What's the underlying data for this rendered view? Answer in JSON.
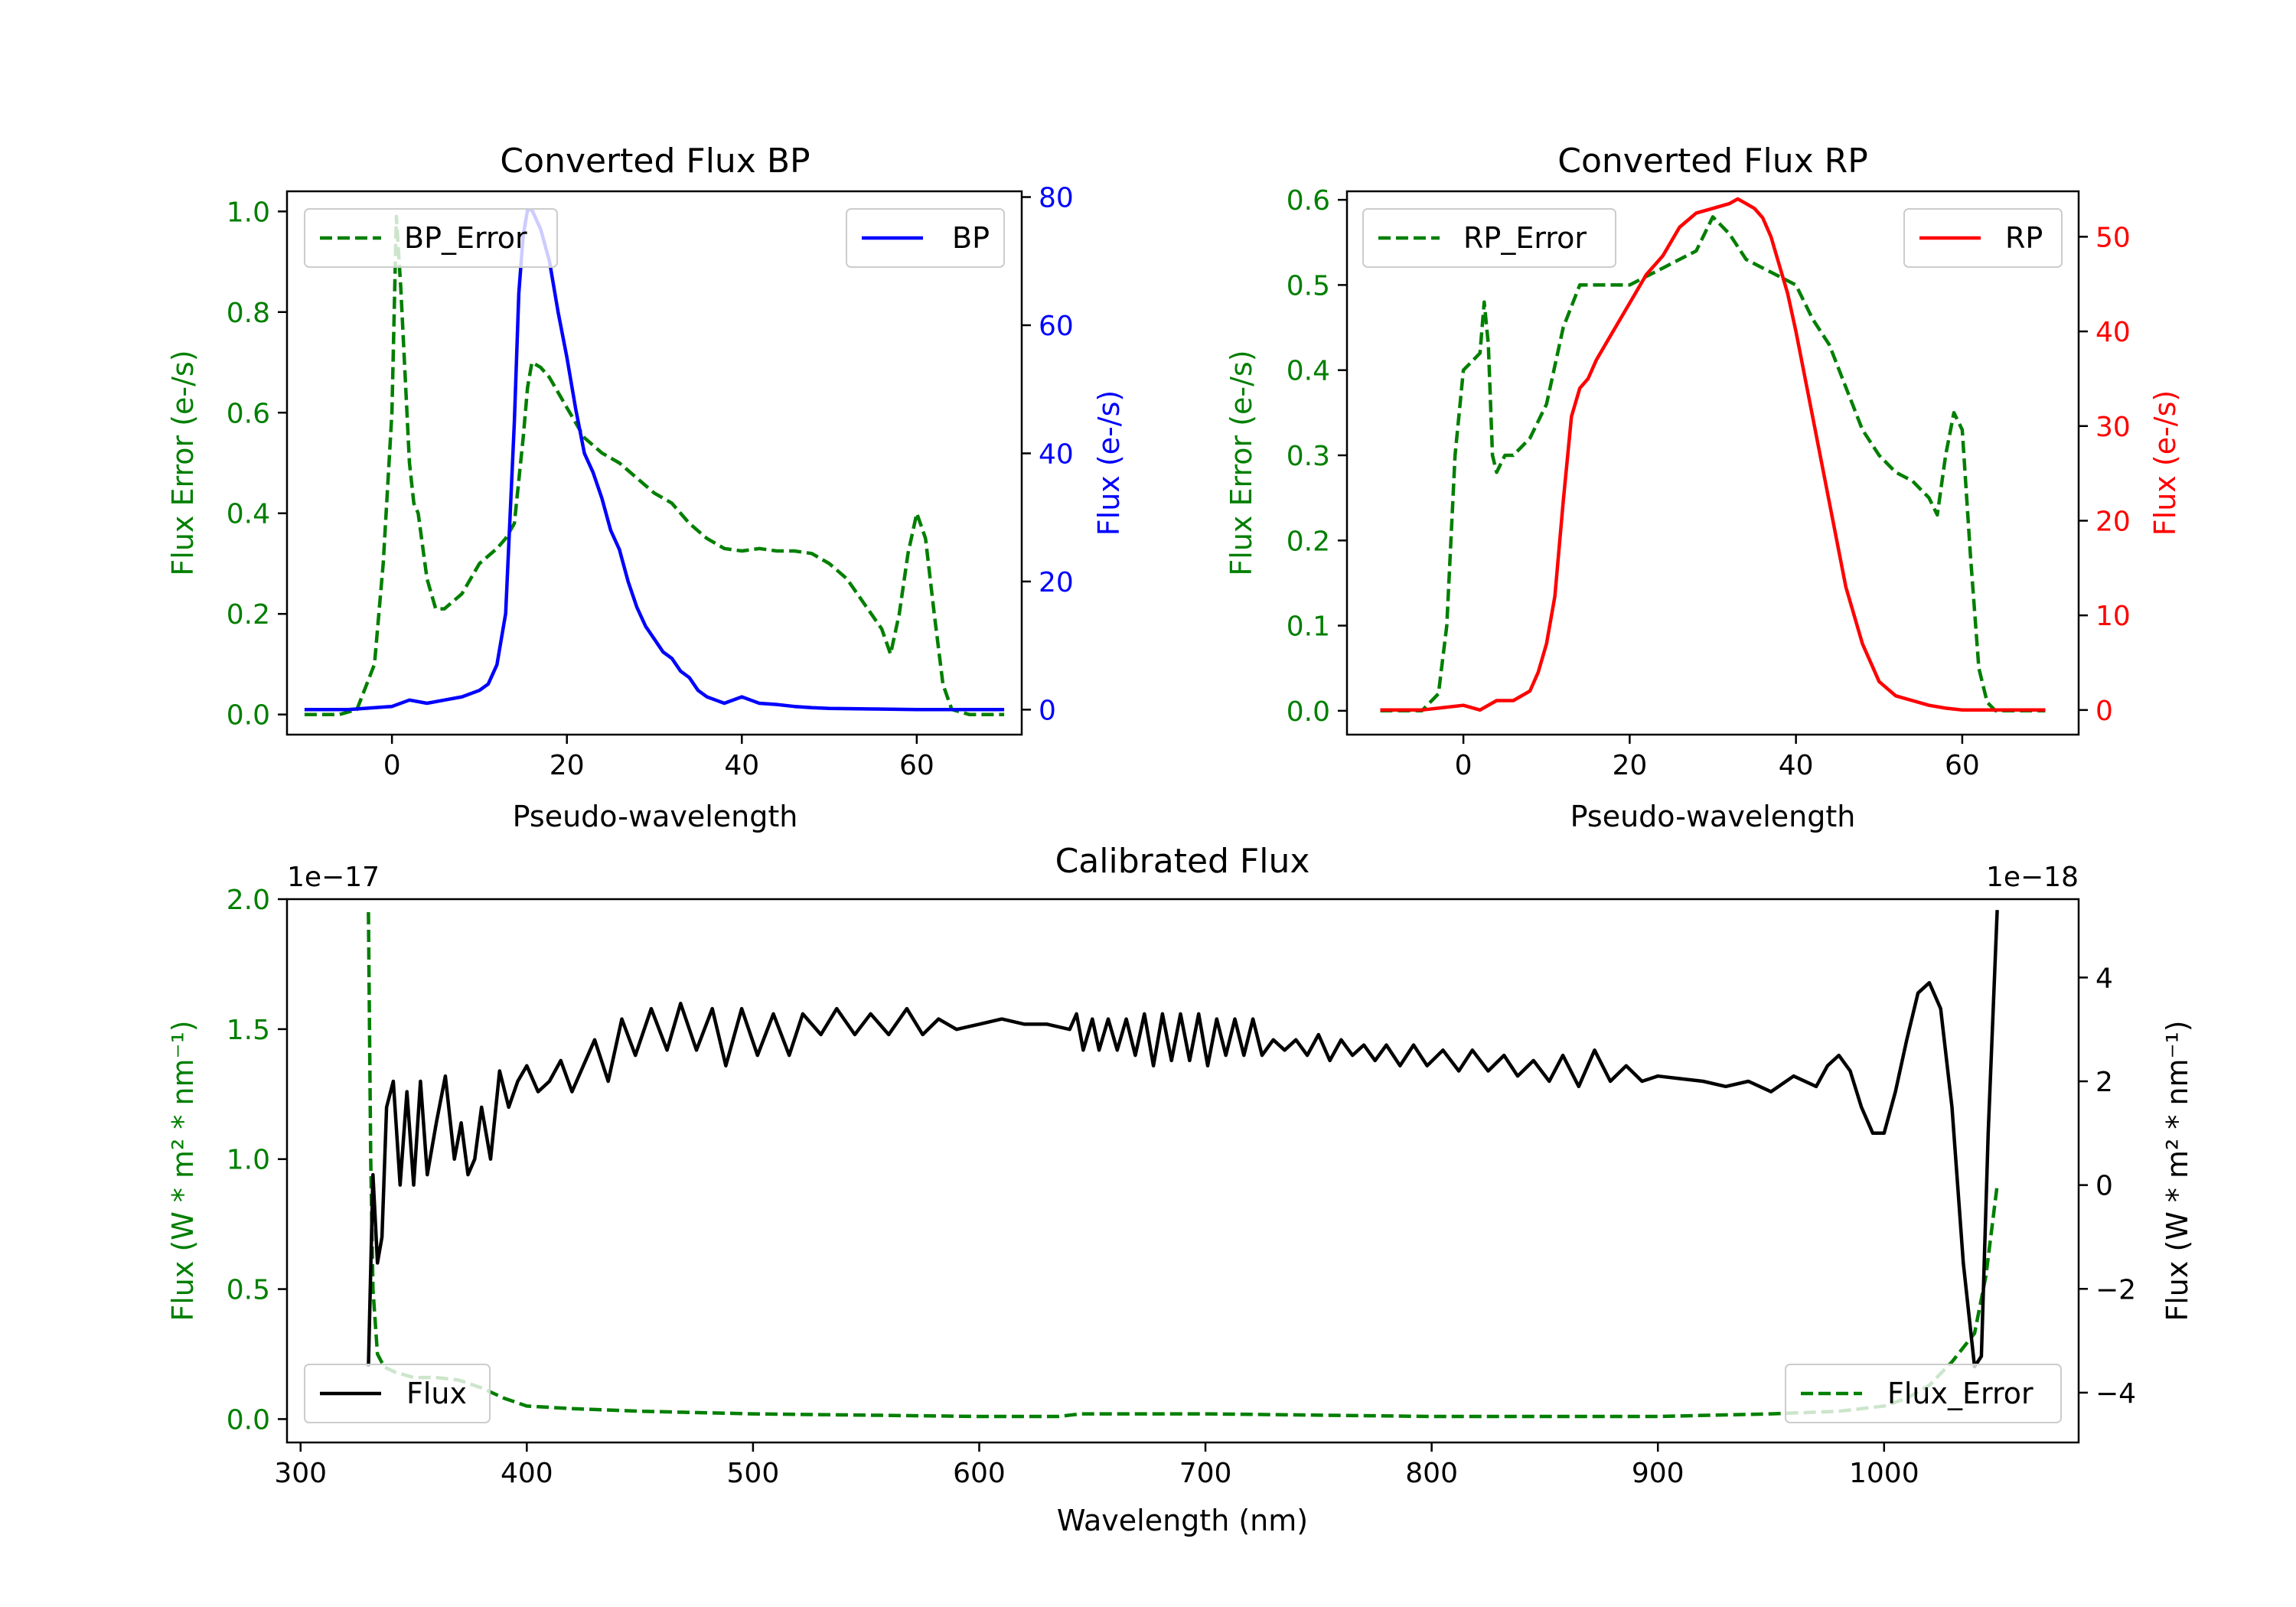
{
  "colors": {
    "green": "#007f00",
    "blue": "#0000ff",
    "red": "#ff0000",
    "black": "#000000"
  },
  "chart_data": [
    {
      "type": "line",
      "title": "Converted Flux BP",
      "xlabel": "Pseudo-wavelength",
      "ylabel_left": "Flux Error (e-/s)",
      "ylabel_right": "Flux (e-/s)",
      "xlim": [
        -12,
        72
      ],
      "ylim_left": [
        -0.04,
        1.04
      ],
      "ylim_right": [
        -3.9,
        80.9
      ],
      "xticks": [
        "0",
        "20",
        "40",
        "60"
      ],
      "yticks_left": [
        "0.0",
        "0.2",
        "0.4",
        "0.6",
        "0.8",
        "1.0"
      ],
      "yticks_right": [
        "0",
        "20",
        "40",
        "60",
        "80"
      ],
      "legend_left": {
        "label": "BP_Error",
        "position": "upper left"
      },
      "legend_right": {
        "label": "BP",
        "position": "upper right"
      },
      "series": [
        {
          "name": "BP_Error",
          "axis": "left",
          "style": "dashed",
          "color": "green",
          "x": [
            -10,
            -6,
            -4,
            -2,
            -1,
            0,
            0.5,
            1,
            2,
            2.5,
            3,
            4,
            5,
            6,
            8,
            10,
            12,
            13,
            14,
            15,
            15.5,
            16,
            17,
            18,
            20,
            22,
            24,
            26,
            28,
            30,
            32,
            34,
            36,
            38,
            40,
            42,
            44,
            46,
            48,
            50,
            52,
            54,
            56,
            57,
            58,
            59,
            60,
            61,
            62,
            63,
            64,
            66,
            70
          ],
          "values": [
            0.0,
            0.0,
            0.01,
            0.1,
            0.3,
            0.6,
            0.99,
            0.85,
            0.5,
            0.42,
            0.4,
            0.27,
            0.21,
            0.21,
            0.24,
            0.3,
            0.33,
            0.35,
            0.38,
            0.55,
            0.65,
            0.7,
            0.69,
            0.67,
            0.61,
            0.55,
            0.52,
            0.5,
            0.47,
            0.44,
            0.42,
            0.38,
            0.35,
            0.33,
            0.325,
            0.33,
            0.325,
            0.325,
            0.32,
            0.3,
            0.27,
            0.22,
            0.17,
            0.12,
            0.2,
            0.32,
            0.4,
            0.35,
            0.2,
            0.06,
            0.01,
            0.0,
            0.0
          ]
        },
        {
          "name": "BP",
          "axis": "right",
          "style": "solid",
          "color": "blue",
          "x": [
            -10,
            -5,
            0,
            2,
            4,
            6,
            8,
            10,
            11,
            12,
            13,
            14,
            14.5,
            15,
            15.5,
            16,
            17,
            18,
            19,
            20,
            21,
            22,
            23,
            24,
            25,
            26,
            27,
            28,
            29,
            30,
            31,
            32,
            33,
            34,
            35,
            36,
            37,
            38,
            40,
            41,
            42,
            44,
            46,
            48,
            50,
            55,
            60,
            65,
            70
          ],
          "values": [
            0,
            0,
            0.5,
            1.5,
            1,
            1.5,
            2,
            3,
            4,
            7,
            15,
            45,
            65,
            74,
            78,
            78,
            75,
            70,
            62,
            55,
            47,
            40,
            37,
            33,
            28,
            25,
            20,
            16,
            13,
            11,
            9,
            8,
            6,
            5,
            3,
            2,
            1.5,
            1,
            2,
            1.5,
            1,
            0.8,
            0.5,
            0.3,
            0.2,
            0.1,
            0,
            0,
            0
          ]
        }
      ]
    },
    {
      "type": "line",
      "title": "Converted Flux RP",
      "xlabel": "Pseudo-wavelength",
      "ylabel_left": "Flux Error (e-/s)",
      "ylabel_right": "Flux (e-/s)",
      "xlim": [
        -14,
        74
      ],
      "ylim_left": [
        -0.028,
        0.61
      ],
      "ylim_right": [
        -2.6,
        54.8
      ],
      "xticks": [
        "0",
        "20",
        "40",
        "60"
      ],
      "yticks_left": [
        "0.0",
        "0.1",
        "0.2",
        "0.3",
        "0.4",
        "0.5",
        "0.6"
      ],
      "yticks_right": [
        "0",
        "10",
        "20",
        "30",
        "40",
        "50"
      ],
      "legend_left": {
        "label": "RP_Error",
        "position": "upper left"
      },
      "legend_right": {
        "label": "RP",
        "position": "upper right"
      },
      "series": [
        {
          "name": "RP_Error",
          "axis": "left",
          "style": "dashed",
          "color": "green",
          "x": [
            -10,
            -5,
            -3,
            -2,
            -1,
            0,
            1,
            2,
            2.5,
            3,
            3.5,
            4,
            5,
            6,
            8,
            10,
            12,
            14,
            16,
            18,
            20,
            22,
            24,
            26,
            28,
            30,
            32,
            34,
            36,
            38,
            40,
            42,
            44,
            46,
            48,
            50,
            52,
            54,
            56,
            57,
            58,
            59,
            60,
            61,
            62,
            63,
            64,
            66,
            70
          ],
          "values": [
            0.0,
            0.0,
            0.02,
            0.1,
            0.3,
            0.4,
            0.41,
            0.42,
            0.48,
            0.43,
            0.3,
            0.28,
            0.3,
            0.3,
            0.32,
            0.36,
            0.45,
            0.5,
            0.5,
            0.5,
            0.5,
            0.51,
            0.52,
            0.53,
            0.54,
            0.58,
            0.56,
            0.53,
            0.52,
            0.51,
            0.5,
            0.46,
            0.43,
            0.38,
            0.33,
            0.3,
            0.28,
            0.27,
            0.25,
            0.23,
            0.3,
            0.35,
            0.33,
            0.18,
            0.05,
            0.01,
            0.0,
            0.0,
            0.0
          ]
        },
        {
          "name": "RP",
          "axis": "right",
          "style": "solid",
          "color": "red",
          "x": [
            -10,
            -5,
            0,
            2,
            4,
            6,
            8,
            9,
            10,
            11,
            12,
            13,
            14,
            15,
            16,
            18,
            20,
            22,
            24,
            26,
            28,
            30,
            32,
            33,
            34,
            35,
            36,
            37,
            38,
            39,
            40,
            42,
            44,
            46,
            48,
            50,
            52,
            54,
            56,
            58,
            60,
            65,
            70
          ],
          "values": [
            0,
            0,
            0.5,
            0,
            1,
            1,
            2,
            4,
            7,
            12,
            22,
            31,
            34,
            35,
            37,
            40,
            43,
            46,
            48,
            51,
            52.5,
            53,
            53.5,
            54,
            53.5,
            53,
            52,
            50,
            47,
            44,
            40,
            31,
            22,
            13,
            7,
            3,
            1.5,
            1,
            0.5,
            0.2,
            0,
            0,
            0
          ]
        }
      ]
    },
    {
      "type": "line",
      "title": "Calibrated Flux",
      "xlabel": "Wavelength (nm)",
      "ylabel_left": "Flux (W * m² * nm⁻¹)",
      "ylabel_right": "Flux (W * m² * nm⁻¹)",
      "offset_left": "1e−17",
      "offset_right": "1e−18",
      "xlim": [
        294,
        1086
      ],
      "ylim_left": [
        -0.09,
        2.0
      ],
      "ylim_right": [
        -4.96,
        5.51
      ],
      "xticks": [
        "300",
        "400",
        "500",
        "600",
        "700",
        "800",
        "900",
        "1000"
      ],
      "yticks_left": [
        "0.0",
        "0.5",
        "1.0",
        "1.5",
        "2.0"
      ],
      "yticks_right": [
        "−4",
        "−2",
        "0",
        "2",
        "4"
      ],
      "legend_left": {
        "label": "Flux",
        "position": "lower left"
      },
      "legend_right": {
        "label": "Flux_Error",
        "position": "lower right"
      },
      "series": [
        {
          "name": "Flux_Error",
          "axis": "left",
          "style": "dashed",
          "color": "green",
          "x": [
            330,
            331,
            332,
            334,
            337,
            342,
            350,
            360,
            370,
            380,
            390,
            400,
            420,
            450,
            500,
            550,
            600,
            635,
            645,
            700,
            800,
            900,
            950,
            980,
            1000,
            1010,
            1020,
            1030,
            1040,
            1045,
            1050
          ],
          "values": [
            1.95,
            1.0,
            0.5,
            0.25,
            0.2,
            0.18,
            0.16,
            0.16,
            0.15,
            0.12,
            0.08,
            0.05,
            0.04,
            0.03,
            0.02,
            0.015,
            0.01,
            0.01,
            0.02,
            0.02,
            0.01,
            0.01,
            0.02,
            0.03,
            0.05,
            0.08,
            0.13,
            0.22,
            0.33,
            0.55,
            0.9
          ]
        },
        {
          "name": "Flux",
          "axis": "right",
          "style": "solid",
          "color": "black",
          "x": [
            330,
            332,
            334,
            336,
            338,
            341,
            344,
            347,
            350,
            353,
            356,
            360,
            364,
            368,
            371,
            374,
            377,
            380,
            384,
            388,
            392,
            396,
            400,
            405,
            410,
            415,
            420,
            425,
            430,
            436,
            442,
            448,
            455,
            462,
            468,
            475,
            482,
            488,
            495,
            502,
            509,
            516,
            522,
            530,
            537,
            545,
            552,
            560,
            568,
            575,
            582,
            590,
            600,
            610,
            620,
            630,
            640,
            643,
            646,
            650,
            653,
            657,
            661,
            665,
            669,
            673,
            677,
            681,
            685,
            689,
            693,
            697,
            701,
            705,
            709,
            713,
            717,
            721,
            725,
            730,
            735,
            740,
            745,
            750,
            755,
            760,
            765,
            770,
            775,
            780,
            786,
            792,
            798,
            805,
            812,
            818,
            825,
            832,
            838,
            845,
            852,
            858,
            865,
            872,
            879,
            886,
            893,
            900,
            910,
            920,
            930,
            940,
            950,
            960,
            970,
            975,
            980,
            985,
            990,
            995,
            1000,
            1005,
            1010,
            1015,
            1020,
            1025,
            1030,
            1035,
            1040,
            1043,
            1046,
            1050
          ],
          "values": [
            -3.5,
            0.2,
            -1.5,
            -1,
            1.5,
            2.0,
            0,
            1.8,
            0,
            2.0,
            0.2,
            1.2,
            2.1,
            0.5,
            1.2,
            0.2,
            0.5,
            1.5,
            0.5,
            2.2,
            1.5,
            2.0,
            2.3,
            1.8,
            2.0,
            2.4,
            1.8,
            2.3,
            2.8,
            2.0,
            3.2,
            2.5,
            3.4,
            2.6,
            3.5,
            2.6,
            3.4,
            2.3,
            3.4,
            2.5,
            3.3,
            2.5,
            3.3,
            2.9,
            3.4,
            2.9,
            3.3,
            2.9,
            3.4,
            2.9,
            3.2,
            3.0,
            3.1,
            3.2,
            3.1,
            3.1,
            3.0,
            3.3,
            2.6,
            3.2,
            2.6,
            3.2,
            2.6,
            3.2,
            2.5,
            3.3,
            2.3,
            3.3,
            2.4,
            3.3,
            2.4,
            3.3,
            2.3,
            3.2,
            2.5,
            3.2,
            2.5,
            3.2,
            2.5,
            2.8,
            2.6,
            2.8,
            2.5,
            2.9,
            2.4,
            2.8,
            2.5,
            2.7,
            2.4,
            2.7,
            2.3,
            2.7,
            2.3,
            2.6,
            2.2,
            2.6,
            2.2,
            2.5,
            2.1,
            2.4,
            2.0,
            2.5,
            1.9,
            2.6,
            2.0,
            2.3,
            2.0,
            2.1,
            2.05,
            2.0,
            1.9,
            2.0,
            1.8,
            2.1,
            1.9,
            2.3,
            2.5,
            2.2,
            1.5,
            1.0,
            1.0,
            1.8,
            2.8,
            3.7,
            3.9,
            3.4,
            1.5,
            -1.5,
            -3.5,
            -3.3,
            1.0,
            5.3
          ]
        }
      ]
    }
  ]
}
